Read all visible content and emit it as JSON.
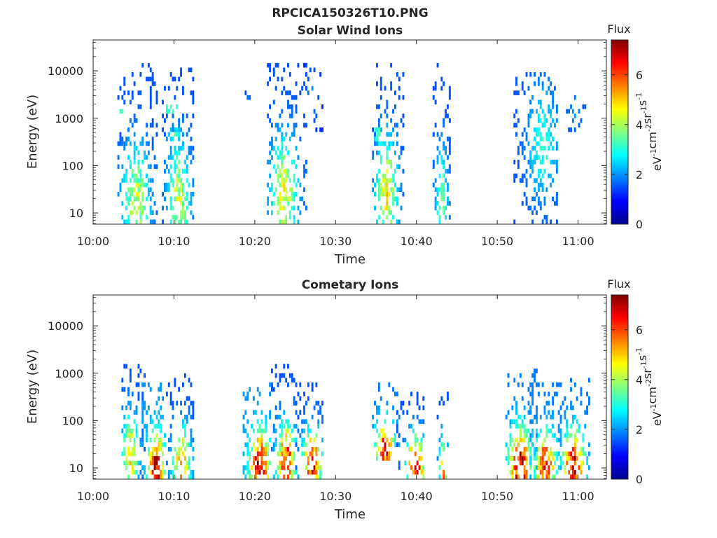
{
  "figure_title": "RPCICA150326T10.PNG",
  "colormap": [
    "#00008f",
    "#0000ff",
    "#0080ff",
    "#00ffff",
    "#80ff80",
    "#ffff00",
    "#ff8000",
    "#ff0000",
    "#800000"
  ],
  "chart_data": [
    {
      "type": "heatmap",
      "title": "Solar Wind Ions",
      "xlabel": "Time",
      "ylabel": "Energy (eV)",
      "x_tick_labels": [
        "10:00",
        "10:10",
        "10:20",
        "10:30",
        "10:40",
        "10:50",
        "11:00"
      ],
      "x_tick_minutes": [
        0,
        10,
        20,
        30,
        40,
        50,
        60
      ],
      "xlim_minutes": [
        0,
        63.5
      ],
      "y_scale": "log",
      "y_tick_labels": [
        "10",
        "100",
        "1000",
        "10000"
      ],
      "y_tick_values": [
        10,
        100,
        1000,
        10000
      ],
      "ylim": [
        5.8,
        45000
      ],
      "colorbar": {
        "label": "Flux",
        "unit": "eV-1cm-2sr-1s-1",
        "range": [
          0,
          7.4
        ],
        "tick_labels": [
          "0",
          "2",
          "4",
          "6"
        ],
        "tick_values": [
          0,
          2,
          4,
          6
        ]
      },
      "blobs": [
        {
          "t": [
            3.0,
            8.0
          ],
          "e": [
            6,
            15000
          ],
          "peak_t": 5.2,
          "peak_e": 16,
          "flux": 4.2,
          "low_flux": 1.5,
          "density": 0.55
        },
        {
          "t": [
            8.5,
            12.5
          ],
          "e": [
            6,
            12000
          ],
          "peak_t": 10.5,
          "peak_e": 20,
          "flux": 4.3,
          "low_flux": 1.5,
          "density": 0.55
        },
        {
          "t": [
            3.0,
            4.0
          ],
          "e": [
            1300,
            1900
          ],
          "peak_t": 3.5,
          "peak_e": 1600,
          "flux": 3.8,
          "low_flux": 3.0,
          "density": 0.9
        },
        {
          "t": [
            9.0,
            10.5
          ],
          "e": [
            1300,
            1900
          ],
          "peak_t": 9.5,
          "peak_e": 1600,
          "flux": 3.8,
          "low_flux": 3.0,
          "density": 0.9
        },
        {
          "t": [
            9.0,
            11.0
          ],
          "e": [
            300,
            600
          ],
          "peak_t": 10.0,
          "peak_e": 450,
          "flux": 3.5,
          "low_flux": 2.0,
          "density": 0.7
        },
        {
          "t": [
            18.5,
            19.5
          ],
          "e": [
            1400,
            3500
          ],
          "peak_t": 19.0,
          "peak_e": 2000,
          "flux": 2.3,
          "low_flux": 1.5,
          "density": 0.3
        },
        {
          "t": [
            21.5,
            26.5
          ],
          "e": [
            6,
            14000
          ],
          "peak_t": 23.5,
          "peak_e": 25,
          "flux": 4.5,
          "low_flux": 1.5,
          "density": 0.5
        },
        {
          "t": [
            26.0,
            28.5
          ],
          "e": [
            400,
            14000
          ],
          "peak_t": 27.0,
          "peak_e": 3000,
          "flux": 2.0,
          "low_flux": 1.2,
          "density": 0.2
        },
        {
          "t": [
            34.5,
            38.5
          ],
          "e": [
            6,
            14000
          ],
          "peak_t": 36.2,
          "peak_e": 25,
          "flux": 4.6,
          "low_flux": 1.5,
          "density": 0.5
        },
        {
          "t": [
            34.8,
            35.6
          ],
          "e": [
            280,
            700
          ],
          "peak_t": 35.2,
          "peak_e": 450,
          "flux": 3.6,
          "low_flux": 2.8,
          "density": 0.9
        },
        {
          "t": [
            42.0,
            44.2
          ],
          "e": [
            6,
            14000
          ],
          "peak_t": 43.0,
          "peak_e": 15,
          "flux": 3.6,
          "low_flux": 1.5,
          "density": 0.5
        },
        {
          "t": [
            52.0,
            57.5
          ],
          "e": [
            6,
            9000
          ],
          "peak_t": 55.5,
          "peak_e": 300,
          "flux": 3.0,
          "low_flux": 1.5,
          "density": 0.45
        },
        {
          "t": [
            58.5,
            60.8
          ],
          "e": [
            500,
            4000
          ],
          "peak_t": 59.5,
          "peak_e": 1500,
          "flux": 2.2,
          "low_flux": 1.5,
          "density": 0.3
        }
      ]
    },
    {
      "type": "heatmap",
      "title": "Cometary Ions",
      "xlabel": "Time",
      "ylabel": "Energy (eV)",
      "x_tick_labels": [
        "10:00",
        "10:10",
        "10:20",
        "10:30",
        "10:40",
        "10:50",
        "11:00"
      ],
      "x_tick_minutes": [
        0,
        10,
        20,
        30,
        40,
        50,
        60
      ],
      "xlim_minutes": [
        0,
        63.5
      ],
      "y_scale": "log",
      "y_tick_labels": [
        "10",
        "100",
        "1000",
        "10000"
      ],
      "y_tick_values": [
        10,
        100,
        1000,
        10000
      ],
      "ylim": [
        5.8,
        45000
      ],
      "colorbar": {
        "label": "Flux",
        "unit": "eV-1cm-2sr-1s-1",
        "range": [
          0,
          7.4
        ],
        "tick_labels": [
          "0",
          "2",
          "4",
          "6"
        ],
        "tick_values": [
          0,
          2,
          4,
          6
        ]
      },
      "blobs": [
        {
          "t": [
            3.5,
            6.5
          ],
          "e": [
            6,
            1400
          ],
          "peak_t": 4.5,
          "peak_e": 20,
          "flux": 5.0,
          "low_flux": 1.5,
          "density": 0.6
        },
        {
          "t": [
            6.0,
            9.0
          ],
          "e": [
            6,
            700
          ],
          "peak_t": 7.7,
          "peak_e": 10,
          "flux": 7.0,
          "low_flux": 2.0,
          "density": 0.65
        },
        {
          "t": [
            9.0,
            12.5
          ],
          "e": [
            6,
            1100
          ],
          "peak_t": 10.8,
          "peak_e": 12,
          "flux": 5.3,
          "low_flux": 1.5,
          "density": 0.55
        },
        {
          "t": [
            18.5,
            22.0
          ],
          "e": [
            6,
            700
          ],
          "peak_t": 20.5,
          "peak_e": 11,
          "flux": 7.1,
          "low_flux": 2.0,
          "density": 0.65
        },
        {
          "t": [
            22.0,
            25.5
          ],
          "e": [
            6,
            1400
          ],
          "peak_t": 23.8,
          "peak_e": 13,
          "flux": 6.5,
          "low_flux": 1.5,
          "density": 0.55
        },
        {
          "t": [
            25.0,
            28.5
          ],
          "e": [
            6,
            700
          ],
          "peak_t": 27.0,
          "peak_e": 12,
          "flux": 6.6,
          "low_flux": 1.5,
          "density": 0.55
        },
        {
          "t": [
            34.5,
            38.0
          ],
          "e": [
            15,
            700
          ],
          "peak_t": 36.0,
          "peak_e": 25,
          "flux": 6.5,
          "low_flux": 1.8,
          "density": 0.55
        },
        {
          "t": [
            37.5,
            41.0
          ],
          "e": [
            6,
            500
          ],
          "peak_t": 39.8,
          "peak_e": 10,
          "flux": 6.8,
          "low_flux": 1.5,
          "density": 0.5
        },
        {
          "t": [
            42.5,
            44.0
          ],
          "e": [
            6,
            400
          ],
          "peak_t": 43.2,
          "peak_e": 10,
          "flux": 5.5,
          "low_flux": 1.5,
          "density": 0.4
        },
        {
          "t": [
            51.0,
            55.0
          ],
          "e": [
            6,
            1200
          ],
          "peak_t": 52.7,
          "peak_e": 11,
          "flux": 7.0,
          "low_flux": 1.8,
          "density": 0.6
        },
        {
          "t": [
            54.0,
            58.0
          ],
          "e": [
            6,
            600
          ],
          "peak_t": 55.8,
          "peak_e": 12,
          "flux": 6.2,
          "low_flux": 1.8,
          "density": 0.6
        },
        {
          "t": [
            57.5,
            61.5
          ],
          "e": [
            6,
            750
          ],
          "peak_t": 59.3,
          "peak_e": 11,
          "flux": 6.8,
          "low_flux": 1.8,
          "density": 0.6
        }
      ]
    }
  ]
}
